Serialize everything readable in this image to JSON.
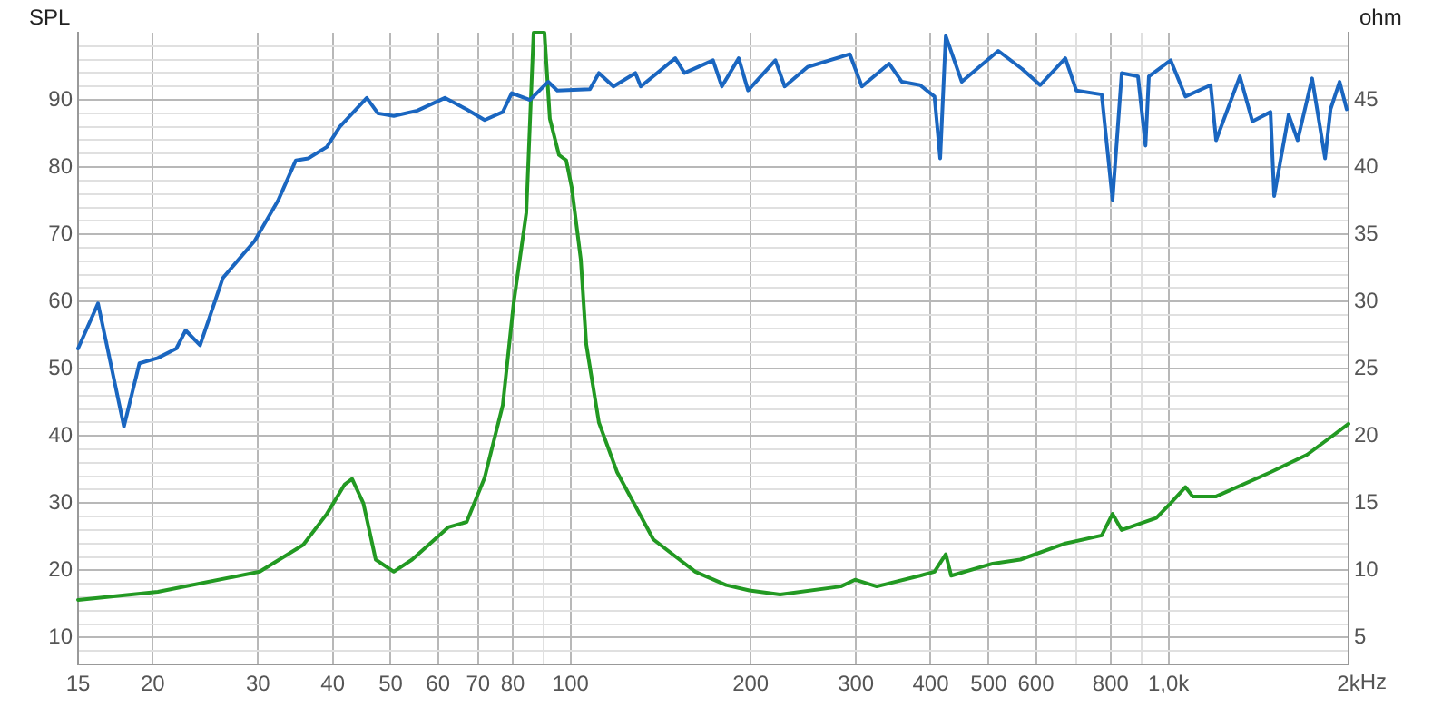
{
  "chart_data": {
    "type": "line",
    "ylabel": "SPL",
    "xlabel": "Hz",
    "y2label": "ohm",
    "log": "x",
    "grid": true,
    "marker": "none",
    "line_style": "solid",
    "xlim": [
      15,
      2000
    ],
    "xticks": [
      15,
      20,
      30,
      40,
      50,
      60,
      70,
      80,
      {
        "value": 90,
        "label": null
      },
      100,
      200,
      300,
      400,
      500,
      600,
      {
        "value": 700,
        "label": null
      },
      800,
      {
        "value": 900,
        "label": null
      },
      {
        "value": 1000,
        "label": "1,0k"
      },
      {
        "value": 2000,
        "label": "2k"
      }
    ],
    "ylim": [
      6,
      100
    ],
    "yticks": [
      {
        "value": 8,
        "label": null
      },
      10,
      {
        "value": 12,
        "label": null
      },
      {
        "value": 14,
        "label": null
      },
      {
        "value": 16,
        "label": null
      },
      {
        "value": 18,
        "label": null
      },
      20,
      {
        "value": 22,
        "label": null
      },
      {
        "value": 24,
        "label": null
      },
      {
        "value": 26,
        "label": null
      },
      {
        "value": 28,
        "label": null
      },
      30,
      {
        "value": 32,
        "label": null
      },
      {
        "value": 34,
        "label": null
      },
      {
        "value": 36,
        "label": null
      },
      {
        "value": 38,
        "label": null
      },
      40,
      {
        "value": 42,
        "label": null
      },
      {
        "value": 44,
        "label": null
      },
      {
        "value": 46,
        "label": null
      },
      {
        "value": 48,
        "label": null
      },
      50,
      {
        "value": 52,
        "label": null
      },
      {
        "value": 54,
        "label": null
      },
      {
        "value": 56,
        "label": null
      },
      {
        "value": 58,
        "label": null
      },
      60,
      {
        "value": 62,
        "label": null
      },
      {
        "value": 64,
        "label": null
      },
      {
        "value": 66,
        "label": null
      },
      {
        "value": 68,
        "label": null
      },
      70,
      {
        "value": 72,
        "label": null
      },
      {
        "value": 74,
        "label": null
      },
      {
        "value": 76,
        "label": null
      },
      {
        "value": 78,
        "label": null
      },
      80,
      {
        "value": 82,
        "label": null
      },
      {
        "value": 84,
        "label": null
      },
      {
        "value": 86,
        "label": null
      },
      {
        "value": 88,
        "label": null
      },
      90,
      {
        "value": 92,
        "label": null
      },
      {
        "value": 94,
        "label": null
      },
      {
        "value": 96,
        "label": null
      },
      {
        "value": 98,
        "label": null
      }
    ],
    "y2lim": [
      3,
      50
    ],
    "y2ticks": [
      5,
      10,
      15,
      20,
      25,
      30,
      35,
      40,
      45
    ],
    "series": [
      {
        "color": "#1a66c0",
        "x": [
          15,
          16.2,
          17.9,
          19,
          20.4,
          21.9,
          22.7,
          24,
          26.2,
          29.6,
          32.4,
          34.7,
          36.4,
          39.1,
          41.1,
          45.6,
          47.6,
          50.6,
          55.4,
          61.6,
          67,
          71.8,
          77,
          79.7,
          85.5,
          91.7,
          95,
          107.7,
          111.5,
          117.9,
          128.3,
          131,
          149.6,
          155,
          173,
          179,
          191,
          198,
          220,
          228,
          249,
          293,
          307,
          341,
          358,
          384,
          406,
          415,
          424,
          451,
          519,
          569,
          610,
          672,
          701,
          773,
          806,
          835,
          889,
          915,
          927,
          1008,
          1067,
          1176,
          1201,
          1316,
          1381,
          1481,
          1502,
          1588,
          1644,
          1738,
          1827,
          1866,
          1932,
          1986
        ],
        "values": [
          53,
          59.7,
          41.4,
          50.8,
          51.6,
          53,
          55.7,
          53.5,
          63.5,
          69,
          75,
          81,
          81.3,
          83,
          86,
          90.3,
          88,
          87.6,
          88.4,
          90.3,
          88.6,
          87,
          88.2,
          91,
          90,
          92.7,
          91.4,
          91.6,
          94,
          92,
          94,
          92,
          96.2,
          94,
          95.9,
          92,
          96.2,
          91.4,
          95.9,
          92,
          94.9,
          96.8,
          92,
          95.4,
          92.7,
          92.2,
          90.5,
          81.3,
          99.5,
          92.7,
          97.3,
          94.6,
          92.2,
          96.2,
          91.4,
          90.8,
          75.1,
          94,
          93.5,
          83.2,
          93.5,
          95.9,
          90.5,
          92.2,
          84,
          93.5,
          86.8,
          88.2,
          75.7,
          87.8,
          84,
          93.2,
          81.3,
          88.6,
          92.7,
          88.6
        ]
      },
      {
        "color": "#229922",
        "axis": "y2",
        "x": [
          15,
          20.4,
          30.2,
          35.7,
          39.1,
          41.9,
          43.1,
          45,
          47.2,
          50.6,
          54.3,
          62.4,
          67,
          71.8,
          77,
          80.3,
          84.3,
          86.7,
          90.4,
          92.3,
          95.6,
          98.3,
          100.4,
          104,
          106.2,
          111.5,
          119.6,
          137.5,
          161.6,
          182,
          199,
          224,
          283,
          299,
          325,
          384,
          406,
          424,
          433,
          508,
          565,
          672,
          773,
          806,
          835,
          954,
          1008,
          1067,
          1097,
          1201,
          1481,
          1704,
          1866,
          2000
        ],
        "values": [
          7.8,
          8.4,
          9.9,
          11.9,
          14.2,
          16.4,
          16.8,
          15,
          10.8,
          9.9,
          10.8,
          13.2,
          13.6,
          16.9,
          22.3,
          29.9,
          36.6,
          50,
          50,
          43.6,
          40.9,
          40.5,
          38.5,
          33.1,
          26.8,
          21,
          17.3,
          12.3,
          9.9,
          8.9,
          8.5,
          8.2,
          8.8,
          9.3,
          8.8,
          9.6,
          9.9,
          11.2,
          9.6,
          10.5,
          10.8,
          12,
          12.6,
          14.2,
          13,
          13.9,
          15,
          16.2,
          15.5,
          15.5,
          17.3,
          18.6,
          19.9,
          20.9
        ]
      }
    ]
  }
}
